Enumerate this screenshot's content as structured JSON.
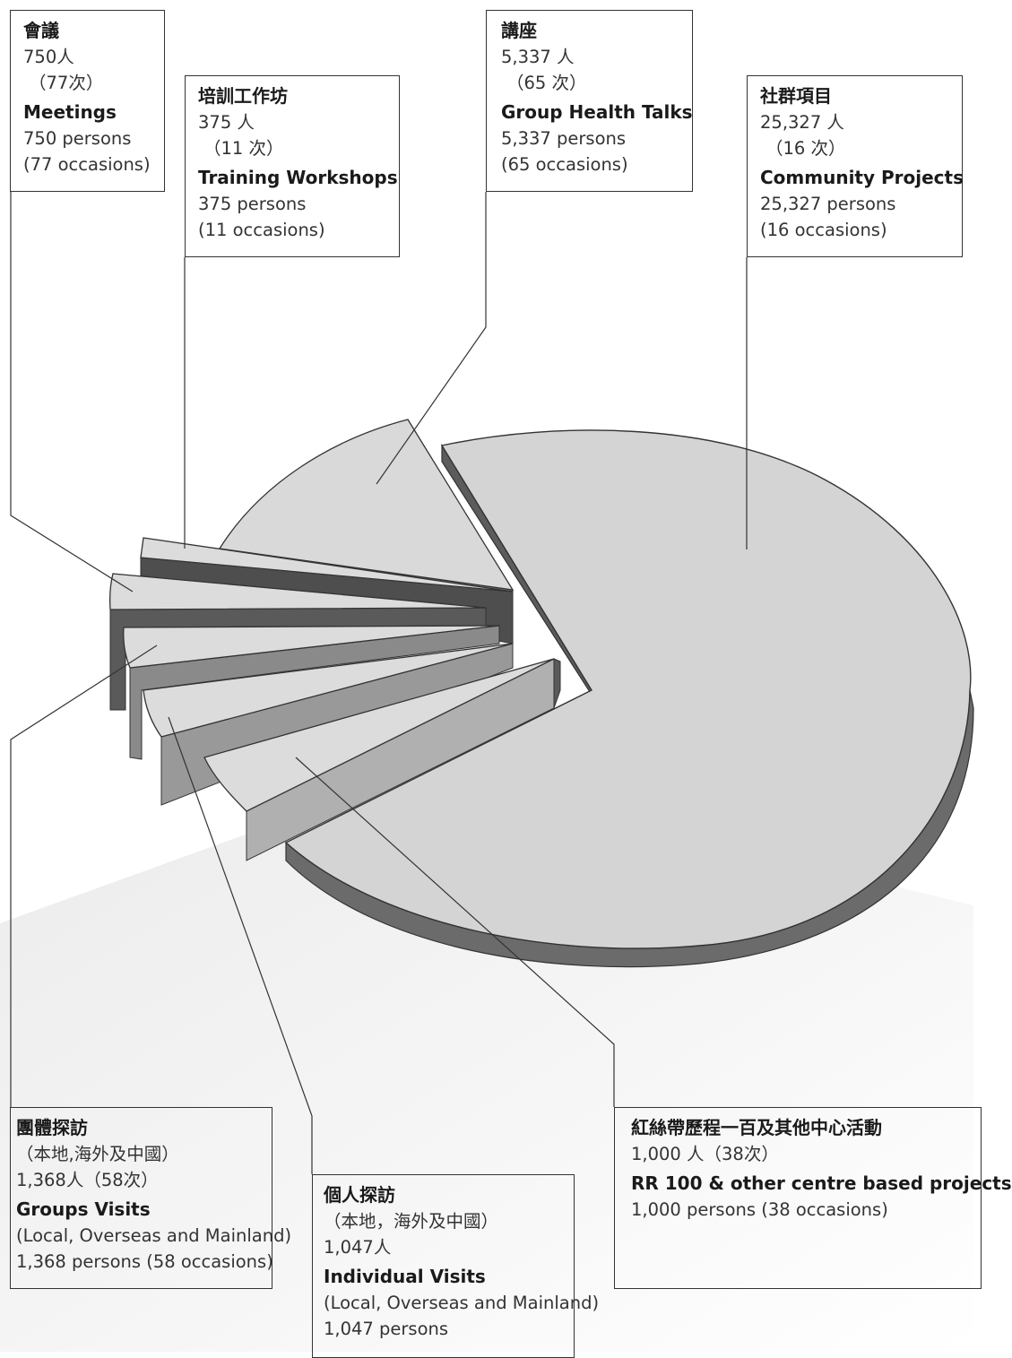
{
  "chart_data": {
    "type": "pie",
    "style": "3d-exploded",
    "slices": [
      {
        "key": "community",
        "label_zh": "社群項目",
        "label_en": "Community Projects",
        "persons": 25327,
        "occasions": 16,
        "lines": [
          "25,327 人",
          "（16 次）"
        ],
        "lines_en": [
          "25,327 persons",
          "(16 occasions)"
        ],
        "color": "#d4d4d4"
      },
      {
        "key": "talks",
        "label_zh": "講座",
        "label_en": "Group Health Talks",
        "persons": 5337,
        "occasions": 65,
        "lines": [
          "5,337 人",
          "（65 次）"
        ],
        "lines_en": [
          "5,337 persons",
          "(65 occasions)"
        ],
        "color": "#d9d9d9"
      },
      {
        "key": "training",
        "label_zh": "培訓工作坊",
        "label_en": "Training Workshops",
        "persons": 375,
        "occasions": 11,
        "lines": [
          "375 人",
          "（11 次）"
        ],
        "lines_en": [
          "375 persons",
          "(11 occasions)"
        ],
        "color": "#dcdcdc"
      },
      {
        "key": "meetings",
        "label_zh": "會議",
        "label_en": "Meetings",
        "persons": 750,
        "occasions": 77,
        "lines": [
          "750人",
          "（77次）"
        ],
        "lines_en": [
          "750 persons",
          "(77 occasions)"
        ],
        "color": "#dcdcdc"
      },
      {
        "key": "groups",
        "label_zh": "團體探訪",
        "label_en": "Groups Visits",
        "persons": 1368,
        "occasions": 58,
        "lines": [
          "（本地,海外及中國）",
          "1,368人（58次）"
        ],
        "lines_en": [
          "(Local, Overseas and Mainland)",
          "1,368 persons (58 occasions)"
        ],
        "color": "#dcdcdc"
      },
      {
        "key": "individual",
        "label_zh": "個人探訪",
        "label_en": "Individual Visits",
        "persons": 1047,
        "occasions": null,
        "lines": [
          "（本地，海外及中國）",
          "1,047人"
        ],
        "lines_en": [
          "(Local, Overseas and Mainland)",
          " 1,047 persons"
        ],
        "color": "#dcdcdc"
      },
      {
        "key": "rr100",
        "label_zh": "紅絲帶歷程一百及其他中心活動",
        "label_en": "RR 100 & other centre based projects",
        "persons": 1000,
        "occasions": 38,
        "lines": [
          "1,000 人（38次）"
        ],
        "lines_en": [
          "1,000 persons (38 occasions)"
        ],
        "color": "#dcdcdc"
      }
    ]
  }
}
